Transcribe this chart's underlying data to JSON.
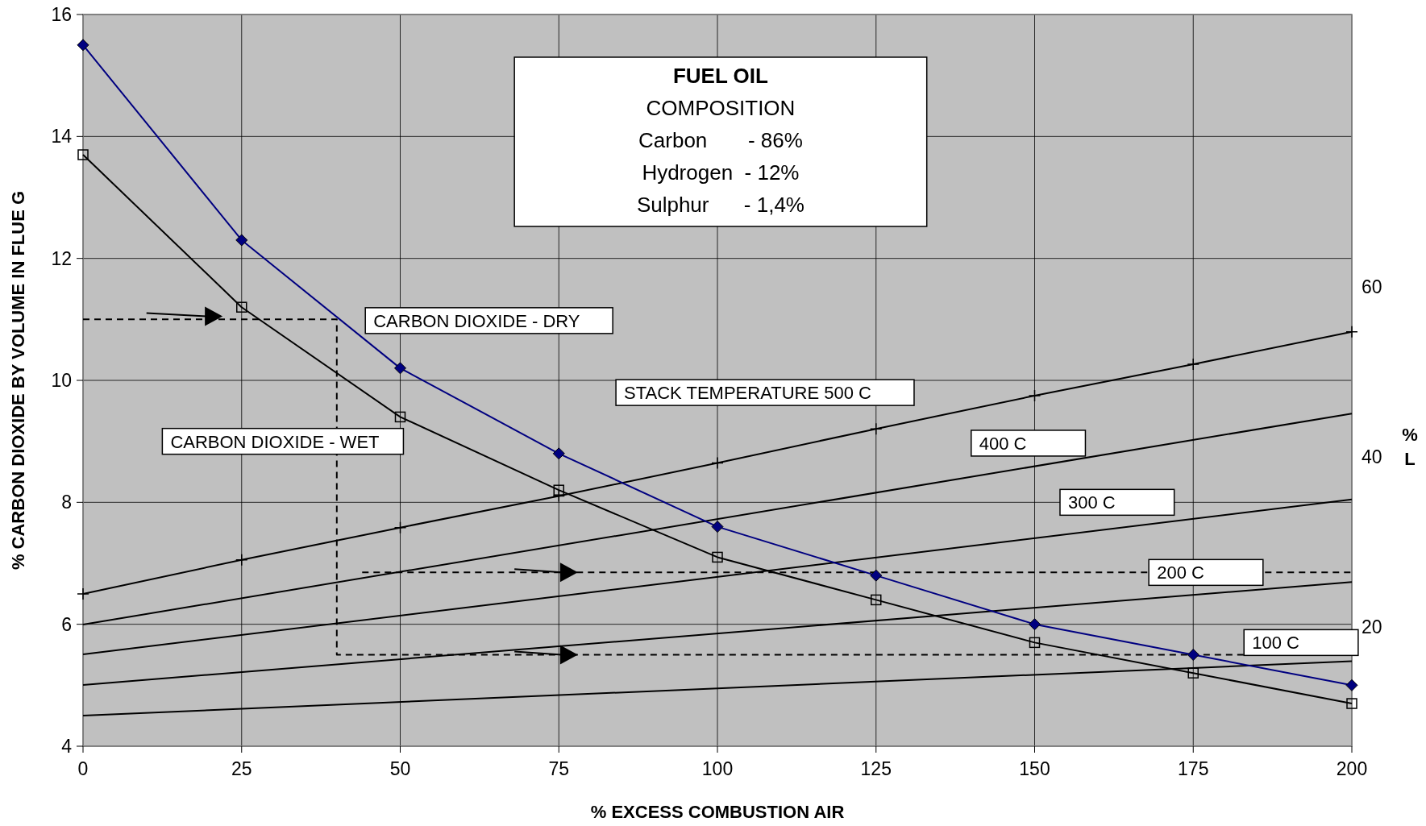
{
  "chart_data": {
    "type": "line",
    "title": "FUEL OIL",
    "xlabel": "% EXCESS COMBUSTION AIR",
    "ylabel": "% CARBON DIOXIDE BY VOLUME IN FLUE G",
    "y2label": "% L",
    "x": [
      0,
      25,
      50,
      75,
      100,
      125,
      150,
      175,
      200
    ],
    "xlim": [
      0,
      200
    ],
    "xticks": [
      0,
      25,
      50,
      75,
      100,
      125,
      150,
      175,
      200
    ],
    "ylim": [
      4,
      16
    ],
    "yticks": [
      4,
      6,
      8,
      10,
      12,
      14,
      16
    ],
    "y2lim": [
      6,
      92
    ],
    "y2ticks": [
      20,
      40,
      60
    ],
    "grid": true,
    "series": [
      {
        "color": "#000080",
        "marker": "diamond",
        "values": [
          15.5,
          12.3,
          10.2,
          8.8,
          7.6,
          6.8,
          6.0,
          5.5,
          5.0
        ]
      },
      {
        "color": "#000000",
        "marker": "square",
        "values": [
          13.7,
          11.2,
          9.4,
          8.2,
          7.1,
          6.4,
          5.7,
          5.2,
          4.7
        ]
      },
      {
        "color": "#000000",
        "marker": "cross",
        "axis": "y2",
        "values": [
          23.9,
          27.9,
          31.7,
          35.4,
          39.3,
          43.3,
          47.2,
          50.9,
          54.7
        ]
      },
      {
        "color": "#000000",
        "marker": "none",
        "axis": "y2",
        "x": [
          0,
          200
        ],
        "values": [
          20.3,
          45.1
        ]
      },
      {
        "color": "#000000",
        "marker": "none",
        "axis": "y2",
        "x": [
          0,
          200
        ],
        "values": [
          16.8,
          35.0
        ]
      },
      {
        "color": "#000000",
        "marker": "none",
        "axis": "y2",
        "x": [
          0,
          200
        ],
        "values": [
          13.2,
          25.3
        ]
      },
      {
        "color": "#000000",
        "marker": "none",
        "axis": "y2",
        "x": [
          0,
          200
        ],
        "values": [
          9.6,
          16.0
        ]
      },
      {
        "color": "#000000",
        "marker": "none",
        "line_style": "dashed",
        "x": [
          0,
          40,
          40,
          200
        ],
        "values": [
          11,
          11,
          5.5,
          5.5
        ]
      },
      {
        "color": "#000000",
        "marker": "none",
        "line_style": "dashed",
        "x": [
          44,
          200
        ],
        "values": [
          6.85,
          6.85
        ]
      }
    ],
    "annotations": [
      "COMPOSITION",
      "Carbon       - 86%",
      "Hydrogen  - 12%",
      "Sulphur      - 1,4%",
      "CARBON DIOXIDE - DRY",
      "CARBON DIOXIDE - WET",
      "STACK TEMPERATURE 500 C",
      "400 C",
      "300 C",
      "200 C",
      "100 C"
    ]
  }
}
